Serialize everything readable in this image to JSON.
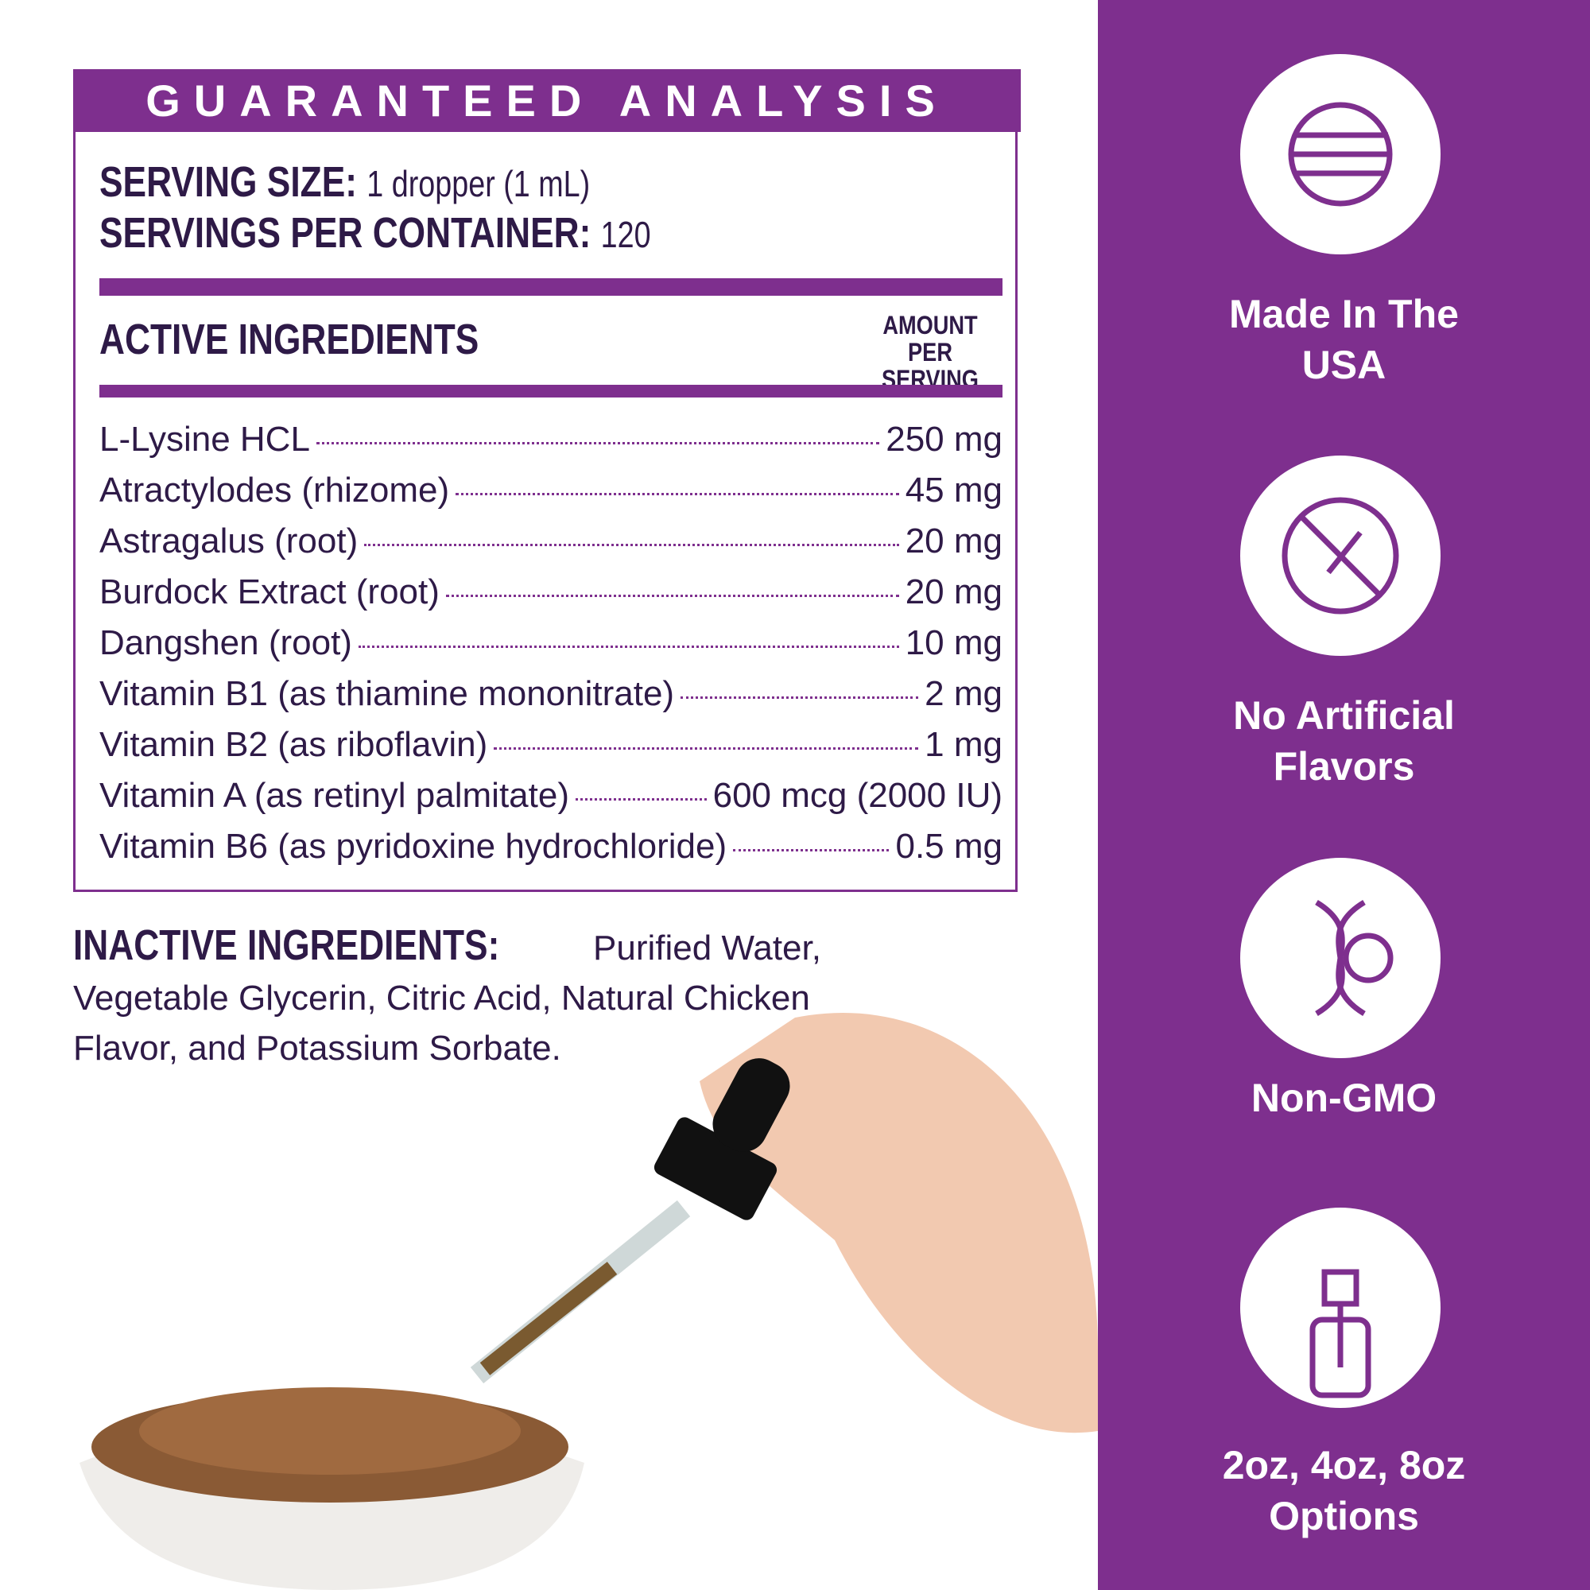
{
  "header": {
    "title": "GUARANTEED ANALYSIS"
  },
  "serving": {
    "size_label": "SERVING SIZE:",
    "size_value": "1 dropper (1 mL)",
    "per_container_label": "SERVINGS PER CONTAINER:",
    "per_container_value": "120"
  },
  "active": {
    "heading": "ACTIVE INGREDIENTS",
    "amount_heading": "AMOUNT PER SERVING",
    "rows": [
      {
        "name": "L-Lysine HCL",
        "amount": "250 mg"
      },
      {
        "name": "Atractylodes (rhizome)",
        "amount": "45 mg"
      },
      {
        "name": "Astragalus (root)",
        "amount": "20 mg"
      },
      {
        "name": "Burdock Extract (root)",
        "amount": "20 mg"
      },
      {
        "name": "Dangshen (root)",
        "amount": "10 mg"
      },
      {
        "name": "Vitamin B1 (as thiamine mononitrate)",
        "amount": "2 mg"
      },
      {
        "name": "Vitamin B2 (as riboflavin)",
        "amount": "1 mg"
      },
      {
        "name": "Vitamin A (as retinyl palmitate)",
        "amount": "600 mcg (2000 IU)"
      },
      {
        "name": "Vitamin B6 (as pyridoxine hydrochloride)",
        "amount": "0.5 mg"
      }
    ]
  },
  "inactive": {
    "label": "INACTIVE INGREDIENTS:",
    "text": "Purified Water, Vegetable Glycerin, Citric Acid, Natural Chicken Flavor, and Potassium Sorbate."
  },
  "features": [
    {
      "label": "Made In The USA"
    },
    {
      "label": "No Artificial Flavors"
    },
    {
      "label": "Non-GMO"
    },
    {
      "label": "2oz, 4oz, 8oz Options"
    }
  ]
}
